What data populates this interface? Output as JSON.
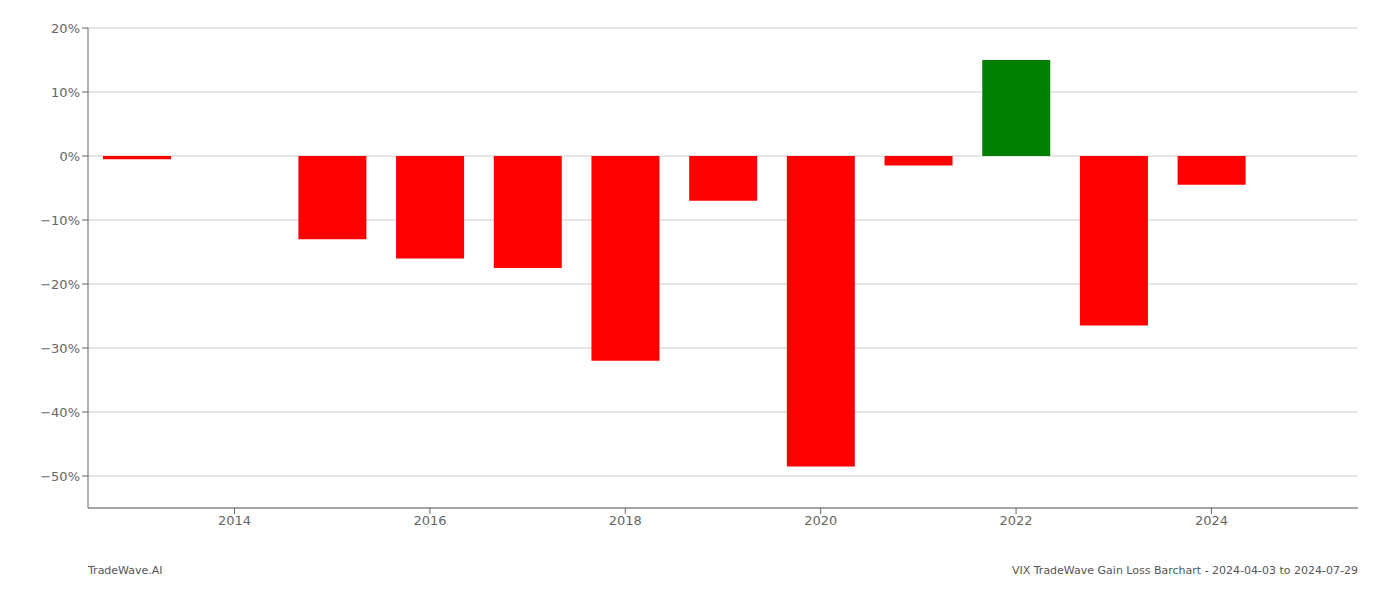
{
  "chart_data": {
    "type": "bar",
    "x": [
      2013,
      2015,
      2016,
      2017,
      2018,
      2019,
      2020,
      2021,
      2022,
      2023,
      2024
    ],
    "values": [
      -0.5,
      -13.0,
      -16.0,
      -17.5,
      -32.0,
      -7.0,
      -48.5,
      -1.5,
      15.0,
      -26.5,
      -4.5
    ],
    "colors": [
      "#FF0000",
      "#FF0000",
      "#FF0000",
      "#FF0000",
      "#FF0000",
      "#FF0000",
      "#FF0000",
      "#FF0000",
      "#008000",
      "#FF0000",
      "#FF0000"
    ],
    "xlim": [
      2012.5,
      2025.5
    ],
    "xticks": [
      2014,
      2016,
      2018,
      2020,
      2022,
      2024
    ],
    "ylim": [
      -55,
      20
    ],
    "yticks": [
      {
        "value": 20,
        "label": "20%"
      },
      {
        "value": 10,
        "label": "10%"
      },
      {
        "value": 0,
        "label": "0%"
      },
      {
        "value": -10,
        "label": "−10%"
      },
      {
        "value": -20,
        "label": "−20%"
      },
      {
        "value": -30,
        "label": "−30%"
      },
      {
        "value": -40,
        "label": "−40%"
      },
      {
        "value": -50,
        "label": "−50%"
      }
    ],
    "grid": true,
    "annotations": [
      "TradeWave.AI",
      "VIX TradeWave Gain Loss Barchart - 2024-04-03 to 2024-07-29"
    ]
  }
}
